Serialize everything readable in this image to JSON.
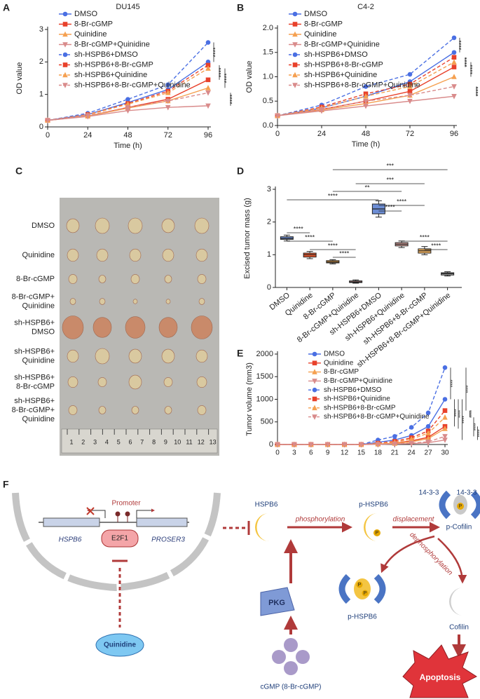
{
  "panel_labels": [
    "A",
    "B",
    "C",
    "D",
    "E",
    "F"
  ],
  "chart_data": [
    {
      "type": "line",
      "title": "DU145",
      "xlabel": "Time (h)",
      "ylabel": "OD value",
      "x": [
        0,
        24,
        48,
        72,
        96
      ],
      "xlim": [
        0,
        96
      ],
      "xticks": [
        0,
        24,
        48,
        72,
        96
      ],
      "ylim": [
        0,
        3
      ],
      "yticks": [
        0,
        1,
        2,
        3
      ],
      "series": [
        {
          "name": "DMSO",
          "color": "#4a6fe3",
          "style": "solid",
          "marker": "circle",
          "values": [
            0.2,
            0.38,
            0.75,
            1.15,
            2.0
          ]
        },
        {
          "name": "8-Br-cGMP",
          "color": "#e8412b",
          "style": "solid",
          "marker": "square",
          "values": [
            0.2,
            0.33,
            0.6,
            0.85,
            1.45
          ]
        },
        {
          "name": "Quinidine",
          "color": "#f5a050",
          "style": "solid",
          "marker": "triangle",
          "values": [
            0.2,
            0.33,
            0.58,
            0.8,
            1.2
          ]
        },
        {
          "name": "8-Br-cGMP+Quinidine",
          "color": "#d98b8b",
          "style": "solid",
          "marker": "triangle-down",
          "values": [
            0.2,
            0.32,
            0.5,
            0.6,
            0.65
          ]
        },
        {
          "name": "sh-HSPB6+DMSO",
          "color": "#4a6fe3",
          "style": "dashed",
          "marker": "circle",
          "values": [
            0.2,
            0.42,
            0.85,
            1.3,
            2.6
          ]
        },
        {
          "name": "sh-HSPB6+8-Br-cGMP",
          "color": "#e8412b",
          "style": "dashed",
          "marker": "square",
          "values": [
            0.2,
            0.38,
            0.72,
            1.1,
            1.9
          ]
        },
        {
          "name": "sh-HSPB6+Quinidine",
          "color": "#f5a050",
          "style": "dashed",
          "marker": "triangle",
          "values": [
            0.2,
            0.37,
            0.7,
            1.05,
            1.8
          ]
        },
        {
          "name": "sh-HSPB6+8-Br-cGMP+Quinidine",
          "color": "#d98b8b",
          "style": "dashed",
          "marker": "triangle-down",
          "values": [
            0.2,
            0.35,
            0.6,
            0.8,
            1.05
          ]
        }
      ],
      "annotations": [
        "****",
        "****",
        "****",
        "****"
      ]
    },
    {
      "type": "line",
      "title": "C4-2",
      "xlabel": "Time (h)",
      "ylabel": "OD value",
      "x": [
        0,
        24,
        48,
        72,
        96
      ],
      "xlim": [
        0,
        96
      ],
      "xticks": [
        0,
        24,
        48,
        72,
        96
      ],
      "ylim": [
        0,
        2
      ],
      "yticks": [
        {
          "value": 0,
          "label": "0.0"
        },
        0.5,
        {
          "value": 1,
          "label": "1.0"
        },
        1.5,
        {
          "value": 2,
          "label": "2.0"
        }
      ],
      "series": [
        {
          "name": "DMSO",
          "color": "#4a6fe3",
          "style": "solid",
          "marker": "circle",
          "values": [
            0.2,
            0.36,
            0.6,
            0.9,
            1.5
          ]
        },
        {
          "name": "8-Br-cGMP",
          "color": "#e8412b",
          "style": "solid",
          "marker": "square",
          "values": [
            0.2,
            0.33,
            0.5,
            0.7,
            1.2
          ]
        },
        {
          "name": "Quinidine",
          "color": "#f5a050",
          "style": "solid",
          "marker": "triangle",
          "values": [
            0.2,
            0.32,
            0.45,
            0.62,
            1.0
          ]
        },
        {
          "name": "8-Br-cGMP+Quinidine",
          "color": "#d98b8b",
          "style": "solid",
          "marker": "triangle-down",
          "values": [
            0.2,
            0.3,
            0.4,
            0.5,
            0.6
          ]
        },
        {
          "name": "sh-HSPB6+DMSO",
          "color": "#4a6fe3",
          "style": "dashed",
          "marker": "circle",
          "values": [
            0.2,
            0.42,
            0.8,
            1.05,
            1.8
          ]
        },
        {
          "name": "sh-HSPB6+8-Br-cGMP",
          "color": "#e8412b",
          "style": "dashed",
          "marker": "square",
          "values": [
            0.2,
            0.38,
            0.65,
            0.85,
            1.4
          ]
        },
        {
          "name": "sh-HSPB6+Quinidine",
          "color": "#f5a050",
          "style": "dashed",
          "marker": "triangle",
          "values": [
            0.2,
            0.36,
            0.6,
            0.8,
            1.3
          ]
        },
        {
          "name": "sh-HSPB6+8-Br-cGMP+Quinidine",
          "color": "#d98b8b",
          "style": "dashed",
          "marker": "triangle-down",
          "values": [
            0.2,
            0.33,
            0.5,
            0.62,
            0.8
          ]
        }
      ],
      "annotations": [
        "****",
        "****",
        "****",
        "****"
      ]
    },
    {
      "type": "box",
      "ylabel": "Excised tumor mass (g)",
      "categories": [
        "DMSO",
        "Quinidine",
        "8-Br-cGMP",
        "8-Br-cGMP+Quinidine",
        "sh-HSPB6+DMSO",
        "sh-HSPB6+Quinidine",
        "sh-HSPB6+8-Br-cGMP",
        "sh-HSPB6+8-Br-cGMP+Quinidine"
      ],
      "colors": [
        "#6d8ed6",
        "#e2562d",
        "#f2a341",
        "#f4a3a0",
        "#6d8ed6",
        "#d9a09a",
        "#f2b35f",
        "#b0b0b0"
      ],
      "values": [
        {
          "min": 1.42,
          "q1": 1.47,
          "median": 1.5,
          "q3": 1.55,
          "max": 1.6
        },
        {
          "min": 0.88,
          "q1": 0.93,
          "median": 1.0,
          "q3": 1.05,
          "max": 1.1
        },
        {
          "min": 0.72,
          "q1": 0.75,
          "median": 0.78,
          "q3": 0.82,
          "max": 0.85
        },
        {
          "min": 0.13,
          "q1": 0.15,
          "median": 0.17,
          "q3": 0.2,
          "max": 0.23
        },
        {
          "min": 2.15,
          "q1": 2.25,
          "median": 2.4,
          "q3": 2.55,
          "max": 2.65
        },
        {
          "min": 1.22,
          "q1": 1.27,
          "median": 1.32,
          "q3": 1.37,
          "max": 1.42
        },
        {
          "min": 1.0,
          "q1": 1.05,
          "median": 1.12,
          "q3": 1.18,
          "max": 1.25
        },
        {
          "min": 0.35,
          "q1": 0.38,
          "median": 0.42,
          "q3": 0.45,
          "max": 0.48
        }
      ],
      "ylim": [
        0,
        3
      ],
      "yticks": [
        0,
        1,
        2,
        3
      ],
      "annotations": [
        "***",
        "***",
        "**",
        "****",
        "****",
        "****",
        "****",
        "****",
        "****",
        "****",
        "****",
        "****"
      ]
    },
    {
      "type": "line",
      "ylabel": "Tumor volume (mm3)",
      "x": [
        0,
        3,
        6,
        9,
        12,
        15,
        18,
        21,
        24,
        27,
        30
      ],
      "xlim": [
        0,
        30
      ],
      "xticks": [
        0,
        3,
        6,
        9,
        12,
        15,
        18,
        21,
        24,
        27,
        30
      ],
      "ylim": [
        0,
        2000
      ],
      "yticks": [
        0,
        500,
        1000,
        1500,
        2000
      ],
      "series": [
        {
          "name": "DMSO",
          "color": "#4a6fe3",
          "style": "solid",
          "marker": "circle",
          "values": [
            0,
            0,
            0,
            0,
            0,
            0,
            50,
            100,
            200,
            400,
            1000
          ]
        },
        {
          "name": "Quinidine",
          "color": "#e8412b",
          "style": "solid",
          "marker": "square",
          "values": [
            0,
            0,
            0,
            0,
            0,
            0,
            10,
            30,
            80,
            160,
            400
          ]
        },
        {
          "name": "8-Br-cGMP",
          "color": "#f5a050",
          "style": "solid",
          "marker": "triangle",
          "values": [
            0,
            0,
            0,
            0,
            0,
            0,
            10,
            25,
            60,
            130,
            350
          ]
        },
        {
          "name": "8-Br-cGMP+Quinidine",
          "color": "#d98b8b",
          "style": "solid",
          "marker": "triangle-down",
          "values": [
            0,
            0,
            0,
            0,
            0,
            0,
            3,
            10,
            20,
            40,
            100
          ]
        },
        {
          "name": "sh-HSPB6+DMSO",
          "color": "#4a6fe3",
          "style": "dashed",
          "marker": "circle",
          "values": [
            0,
            0,
            0,
            0,
            0,
            0,
            100,
            180,
            380,
            700,
            1700
          ]
        },
        {
          "name": "sh-HSPB6+Quinidine",
          "color": "#e8412b",
          "style": "dashed",
          "marker": "square",
          "values": [
            0,
            0,
            0,
            0,
            0,
            0,
            30,
            70,
            150,
            300,
            750
          ]
        },
        {
          "name": "sh-HSPB6+8-Br-cGMP",
          "color": "#f5a050",
          "style": "dashed",
          "marker": "triangle",
          "values": [
            0,
            0,
            0,
            0,
            0,
            0,
            20,
            50,
            120,
            250,
            600
          ]
        },
        {
          "name": "sh-HSPB6+8-Br-cGMP+Quinidine",
          "color": "#d98b8b",
          "style": "dashed",
          "marker": "triangle-down",
          "values": [
            0,
            0,
            0,
            0,
            0,
            0,
            5,
            15,
            30,
            60,
            180
          ]
        }
      ],
      "annotations": [
        "****",
        "****",
        "****",
        "****",
        "****",
        "****",
        "****",
        "****"
      ]
    }
  ],
  "photo": {
    "row_labels": [
      [
        "DMSO"
      ],
      [
        "Quinidine"
      ],
      [
        "8-Br-cGMP"
      ],
      [
        "8-Br-cGMP+",
        "Quinidine"
      ],
      [
        "sh-HSPB6+",
        "DMSO"
      ],
      [
        "sh-HSPB6+",
        "Quinidine"
      ],
      [
        "sh-HSPB6+",
        "8-Br-cGMP"
      ],
      [
        "sh-HSPB6+",
        "8-Br-cGMP+",
        "Quinidine"
      ]
    ],
    "ruler_labels": [
      "1",
      "2",
      "3",
      "4",
      "5",
      "6",
      "7",
      "8",
      "9",
      "10",
      "11",
      "12",
      "13"
    ]
  },
  "diagram": {
    "promoter": "Promoter",
    "gene_left": "HSPB6",
    "tf": "E2F1",
    "gene_right": "PROSER3",
    "drug": "Quinidine",
    "hspb6": "HSPB6",
    "p_hspb6": "p-HSPB6",
    "phosphorylation": "phosphorylation",
    "displacement": "displacement",
    "protein_14_3_3_left": "14-3-3",
    "protein_14_3_3_right": "14-3-3",
    "p_cofilin": "p-Cofilin",
    "dephosphorylation": "dephosphorylation",
    "pkg": "PKG",
    "cgmp": "cGMP (8-Br-cGMP)",
    "p_hspb6_complex": "p-HSPB6",
    "cofilin": "Cofilin",
    "apoptosis": "Apoptosis",
    "phospho_mark": "P"
  }
}
